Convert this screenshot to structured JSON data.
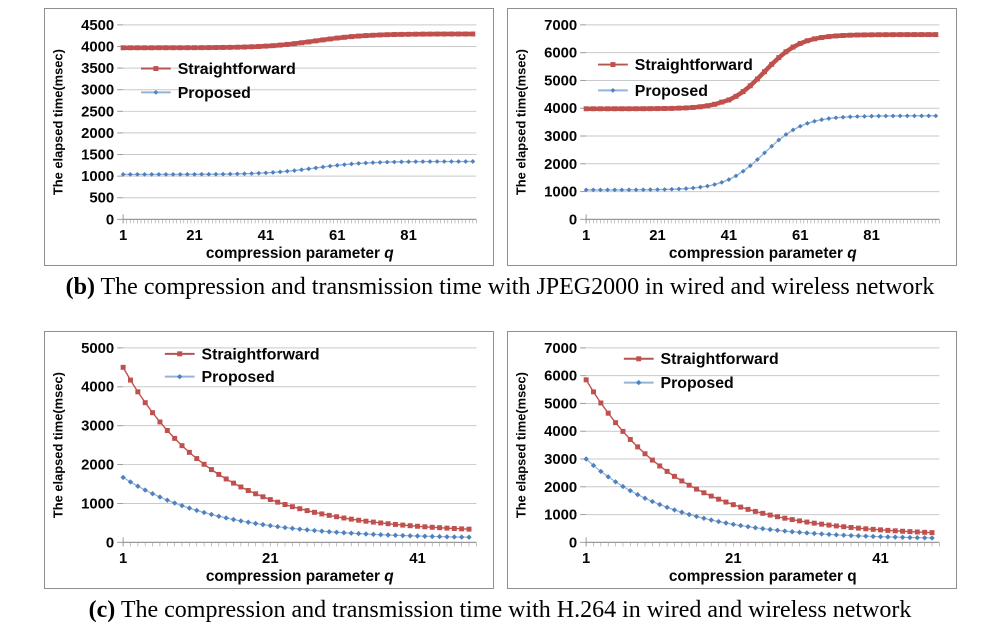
{
  "captions": {
    "b_label": "(b)",
    "b_text": " The compression and transmission time with JPEG2000 in wired and wireless network",
    "c_label": "(c)",
    "c_text": " The compression and transmission time with H.264 in wired and wireless network"
  },
  "colors": {
    "straightforward": "#c0504d",
    "straightforward_line": "#b05653",
    "proposed": "#4f81bd",
    "proposed_line": "#95b3d7",
    "grid": "#c9c9c9",
    "axis": "#9a9a9a",
    "text": "#050505"
  },
  "chart_data": [
    {
      "id": "jpeg2000-wired",
      "type": "line",
      "title": "",
      "ylabel": "The elapsed time(msec)",
      "xlabel_main": "compression parameter ",
      "xlabel_var": "q",
      "xlabel_var_italic": true,
      "ylim": [
        0,
        4500
      ],
      "ystep": 500,
      "xlim": [
        1,
        100
      ],
      "xticks": [
        1,
        21,
        41,
        61,
        81
      ],
      "grid": true,
      "legend_position": "inside-upper-left",
      "legend_pos": {
        "x": 18,
        "y": 44,
        "row": 24,
        "line": 30
      },
      "series": [
        {
          "name": "Straightforward",
          "marker": "square",
          "x0": 1,
          "dx": 2,
          "line_width": 4.5,
          "marker_size": 5,
          "y": [
            3970,
            3970,
            3970,
            3970,
            3970,
            3971,
            3971,
            3971,
            3971,
            3972,
            3972,
            3973,
            3974,
            3976,
            3978,
            3980,
            3983,
            3987,
            3993,
            3999,
            4008,
            4019,
            4032,
            4048,
            4065,
            4086,
            4107,
            4130,
            4153,
            4174,
            4195,
            4212,
            4228,
            4241,
            4252,
            4260,
            4267,
            4273,
            4277,
            4280,
            4282,
            4284,
            4286,
            4287,
            4288,
            4288,
            4289,
            4289,
            4289,
            4289
          ]
        },
        {
          "name": "Proposed",
          "marker": "diamond",
          "x0": 1,
          "dx": 2,
          "line_width": 1.4,
          "marker_size": 3.9,
          "y": [
            1040,
            1040,
            1040,
            1040,
            1040,
            1041,
            1041,
            1041,
            1041,
            1042,
            1042,
            1043,
            1044,
            1045,
            1047,
            1049,
            1052,
            1056,
            1061,
            1068,
            1076,
            1086,
            1098,
            1113,
            1129,
            1148,
            1169,
            1190,
            1211,
            1232,
            1251,
            1267,
            1282,
            1294,
            1304,
            1312,
            1319,
            1324,
            1327,
            1331,
            1333,
            1335,
            1336,
            1337,
            1338,
            1338,
            1339,
            1339,
            1339,
            1340
          ]
        }
      ]
    },
    {
      "id": "jpeg2000-wireless",
      "type": "line",
      "title": "",
      "ylabel": "The elapsed time(msec)",
      "xlabel_main": "compression parameter ",
      "xlabel_var": "q",
      "xlabel_var_italic": true,
      "ylim": [
        0,
        7000
      ],
      "ystep": 1000,
      "xlim": [
        1,
        100
      ],
      "xticks": [
        1,
        21,
        41,
        61,
        81
      ],
      "grid": true,
      "legend_position": "inside-upper-left",
      "legend_pos": {
        "x": 12,
        "y": 40,
        "row": 26,
        "line": 30
      },
      "series": [
        {
          "name": "Straightforward",
          "marker": "square",
          "x0": 1,
          "dx": 2,
          "line_width": 4.5,
          "marker_size": 5,
          "y": [
            3980,
            3980,
            3980,
            3980,
            3981,
            3981,
            3981,
            3982,
            3983,
            3984,
            3987,
            3990,
            3994,
            4002,
            4012,
            4028,
            4052,
            4088,
            4141,
            4221,
            4298,
            4429,
            4598,
            4808,
            5052,
            5315,
            5579,
            5822,
            6032,
            6201,
            6332,
            6428,
            6497,
            6546,
            6578,
            6602,
            6618,
            6628,
            6635,
            6640,
            6643,
            6646,
            6647,
            6648,
            6649,
            6649,
            6650,
            6650,
            6650,
            6650
          ]
        },
        {
          "name": "Proposed",
          "marker": "diamond",
          "x0": 1,
          "dx": 2,
          "line_width": 1.4,
          "marker_size": 3.9,
          "y": [
            1060,
            1060,
            1060,
            1061,
            1061,
            1062,
            1063,
            1064,
            1065,
            1068,
            1071,
            1076,
            1083,
            1094,
            1108,
            1128,
            1158,
            1198,
            1254,
            1331,
            1432,
            1566,
            1731,
            1928,
            2153,
            2393,
            2632,
            2857,
            3054,
            3219,
            3352,
            3454,
            3531,
            3587,
            3628,
            3657,
            3677,
            3691,
            3701,
            3708,
            3714,
            3718,
            3720,
            3722,
            3723,
            3724,
            3725,
            3725,
            3725,
            3725
          ]
        }
      ]
    },
    {
      "id": "h264-wired",
      "type": "line",
      "title": "",
      "ylabel": "The elapsed time(msec)",
      "xlabel_main": "compression parameter ",
      "xlabel_var": "q",
      "xlabel_var_italic": true,
      "ylim": [
        0,
        5000
      ],
      "ystep": 1000,
      "xlim": [
        1,
        49
      ],
      "xticks": [
        1,
        21,
        41
      ],
      "grid": true,
      "legend_position": "inside-upper-center",
      "legend_pos": {
        "x": 42,
        "y": 6,
        "row": 23,
        "line": 30
      },
      "series": [
        {
          "name": "Straightforward",
          "marker": "square",
          "x0": 1,
          "dx": 1,
          "line_width": 1.4,
          "marker_size": 5,
          "y": [
            4500,
            4172,
            3870,
            3591,
            3333,
            3095,
            2876,
            2673,
            2486,
            2314,
            2154,
            2007,
            1871,
            1746,
            1630,
            1523,
            1424,
            1333,
            1249,
            1172,
            1100,
            1034,
            973,
            917,
            865,
            816,
            772,
            731,
            694,
            659,
            626,
            597,
            569,
            544,
            521,
            499,
            479,
            461,
            444,
            428,
            414,
            400,
            388,
            377,
            366,
            356,
            347,
            339
          ]
        },
        {
          "name": "Proposed",
          "marker": "diamond",
          "x0": 1,
          "dx": 1,
          "line_width": 1.2,
          "marker_size": 4.4,
          "y": [
            1670,
            1553,
            1444,
            1344,
            1251,
            1165,
            1085,
            1011,
            943,
            880,
            821,
            767,
            717,
            670,
            627,
            588,
            551,
            517,
            485,
            456,
            429,
            403,
            380,
            359,
            339,
            321,
            304,
            288,
            273,
            259,
            247,
            236,
            225,
            215,
            205,
            197,
            189,
            182,
            175,
            169,
            163,
            157,
            152,
            148,
            143,
            139,
            136,
            132
          ]
        }
      ]
    },
    {
      "id": "h264-wireless",
      "type": "line",
      "title": "",
      "ylabel": "The elapsed time(msec)",
      "xlabel_main": "compression parameter ",
      "xlabel_var": "q",
      "xlabel_var_italic": false,
      "ylim": [
        0,
        7000
      ],
      "ystep": 1000,
      "xlim": [
        1,
        49
      ],
      "xticks": [
        1,
        21,
        41
      ],
      "grid": true,
      "legend_position": "inside-upper-center",
      "legend_pos": {
        "x": 38,
        "y": 11,
        "row": 24,
        "line": 30
      },
      "series": [
        {
          "name": "Straightforward",
          "marker": "square",
          "x0": 1,
          "dx": 1,
          "line_width": 1.4,
          "marker_size": 5,
          "y": [
            5850,
            5417,
            5017,
            4649,
            4308,
            3994,
            3704,
            3436,
            3189,
            2961,
            2750,
            2555,
            2376,
            2210,
            2057,
            1916,
            1785,
            1665,
            1554,
            1451,
            1357,
            1269,
            1188,
            1114,
            1045,
            982,
            923,
            869,
            820,
            773,
            731,
            691,
            655,
            622,
            591,
            562,
            536,
            512,
            489,
            469,
            450,
            432,
            415,
            401,
            387,
            374,
            362,
            351
          ]
        },
        {
          "name": "Proposed",
          "marker": "diamond",
          "x0": 1,
          "dx": 1,
          "line_width": 1.2,
          "marker_size": 4.4,
          "y": [
            3000,
            2768,
            2553,
            2359,
            2179,
            2011,
            1860,
            1718,
            1588,
            1469,
            1362,
            1260,
            1167,
            1083,
            1002,
            932,
            866,
            805,
            747,
            697,
            648,
            605,
            564,
            526,
            492,
            463,
            434,
            407,
            382,
            360,
            339,
            320,
            302,
            286,
            271,
            257,
            245,
            233,
            223,
            213,
            204,
            195,
            188,
            181,
            174,
            168,
            163,
            158
          ]
        }
      ]
    }
  ]
}
